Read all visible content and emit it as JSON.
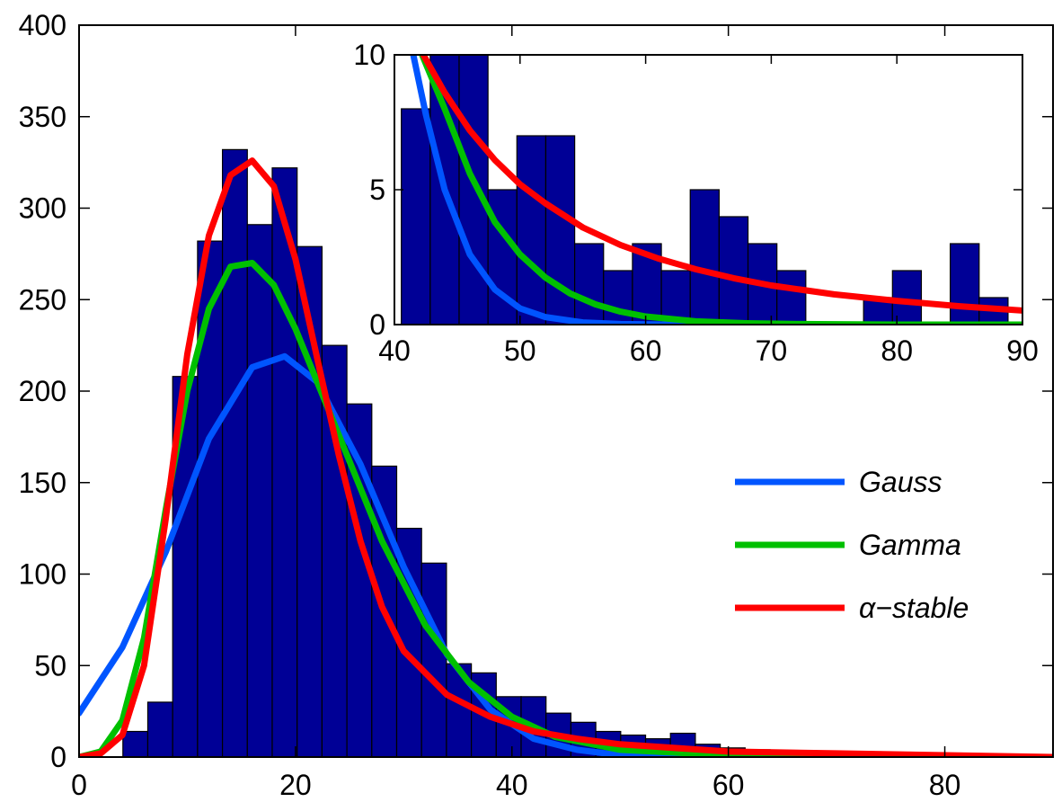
{
  "chart_data": [
    {
      "type": "bar",
      "role": "main",
      "xlim": [
        0,
        90
      ],
      "ylim": [
        0,
        400
      ],
      "xticks": [
        0,
        20,
        40,
        60,
        80
      ],
      "yticks": [
        0,
        50,
        100,
        150,
        200,
        250,
        300,
        350,
        400
      ],
      "bar_width": 2.3,
      "bars": {
        "x": [
          5.2,
          7.5,
          9.8,
          12.1,
          14.4,
          16.7,
          19.0,
          21.3,
          23.6,
          25.9,
          28.2,
          30.5,
          32.8,
          35.1,
          37.4,
          39.7,
          42.0,
          44.3,
          46.6,
          48.9,
          51.2,
          53.5,
          55.8,
          58.1,
          60.4,
          62.7,
          65.0,
          67.3,
          69.6,
          71.9
        ],
        "y": [
          14,
          30,
          208,
          282,
          332,
          291,
          322,
          279,
          225,
          193,
          159,
          125,
          106,
          51,
          46,
          33,
          33,
          24,
          19,
          14,
          12,
          10,
          13,
          7,
          5,
          4,
          3,
          2,
          2,
          2
        ]
      },
      "series": [
        {
          "name": "Gauss",
          "color": "#0055ff",
          "x": [
            0,
            4,
            8,
            12,
            16,
            19,
            22,
            26,
            30,
            34,
            38,
            42,
            46,
            50,
            60,
            90
          ],
          "y": [
            24,
            60,
            112,
            174,
            213,
            219,
            205,
            160,
            104,
            56,
            26,
            10,
            4,
            1,
            0,
            0
          ]
        },
        {
          "name": "Gamma",
          "color": "#00c000",
          "x": [
            0,
            2,
            4,
            6,
            8,
            10,
            12,
            14,
            16,
            18,
            20,
            24,
            28,
            32,
            36,
            40,
            44,
            50,
            60,
            90
          ],
          "y": [
            0,
            3,
            20,
            65,
            135,
            200,
            245,
            268,
            270,
            258,
            234,
            176,
            118,
            72,
            41,
            22,
            11,
            4,
            1,
            0
          ]
        },
        {
          "name": "α−stable",
          "color": "#ff0000",
          "x": [
            0,
            2,
            4,
            6,
            8,
            10,
            12,
            14,
            16,
            18,
            20,
            22,
            24,
            26,
            28,
            30,
            34,
            38,
            42,
            46,
            50,
            60,
            70,
            90
          ],
          "y": [
            0,
            2,
            12,
            50,
            130,
            220,
            285,
            318,
            326,
            312,
            272,
            218,
            165,
            118,
            82,
            58,
            34,
            22,
            14,
            10,
            7,
            3,
            2,
            0
          ]
        }
      ],
      "legend": {
        "placement": "right",
        "entries": [
          "Gauss",
          "Gamma",
          "α−stable"
        ]
      }
    },
    {
      "type": "bar",
      "role": "inset",
      "xlim": [
        40,
        90
      ],
      "ylim": [
        0,
        10
      ],
      "xticks": [
        40,
        50,
        60,
        70,
        80,
        90
      ],
      "yticks": [
        0,
        5,
        10
      ],
      "bar_width": 2.3,
      "bars": {
        "x": [
          41.7,
          44.0,
          46.3,
          48.6,
          50.9,
          53.2,
          55.5,
          57.8,
          60.1,
          62.4,
          64.7,
          67.0,
          69.3,
          71.6,
          78.5,
          80.8,
          85.4,
          87.7
        ],
        "y": [
          8,
          10,
          10,
          5,
          7,
          7,
          3,
          2,
          3,
          2,
          5,
          4,
          3,
          2,
          1,
          2,
          3,
          1
        ]
      },
      "series": [
        {
          "name": "Gauss",
          "color": "#0055ff",
          "x": [
            41.5,
            42.5,
            44,
            46,
            48,
            50,
            52,
            55,
            58,
            62,
            66,
            70,
            90
          ],
          "y": [
            10,
            7.8,
            5.0,
            2.6,
            1.3,
            0.6,
            0.28,
            0.08,
            0.02,
            0,
            0,
            0,
            0
          ]
        },
        {
          "name": "Gamma",
          "color": "#00c000",
          "x": [
            42.2,
            44,
            46,
            48,
            50,
            52,
            54,
            56,
            58,
            60,
            64,
            68,
            72,
            80,
            90
          ],
          "y": [
            10,
            8.0,
            5.6,
            3.8,
            2.6,
            1.75,
            1.15,
            0.75,
            0.48,
            0.3,
            0.12,
            0.05,
            0.02,
            0,
            0
          ]
        },
        {
          "name": "α−stable",
          "color": "#ff0000",
          "x": [
            42.3,
            44,
            46,
            48,
            50,
            52,
            55,
            58,
            61,
            64,
            67,
            70,
            75,
            80,
            85,
            90
          ],
          "y": [
            10,
            8.6,
            7.2,
            6.1,
            5.2,
            4.5,
            3.6,
            2.95,
            2.45,
            2.05,
            1.72,
            1.45,
            1.12,
            0.88,
            0.68,
            0.52
          ]
        }
      ]
    }
  ]
}
